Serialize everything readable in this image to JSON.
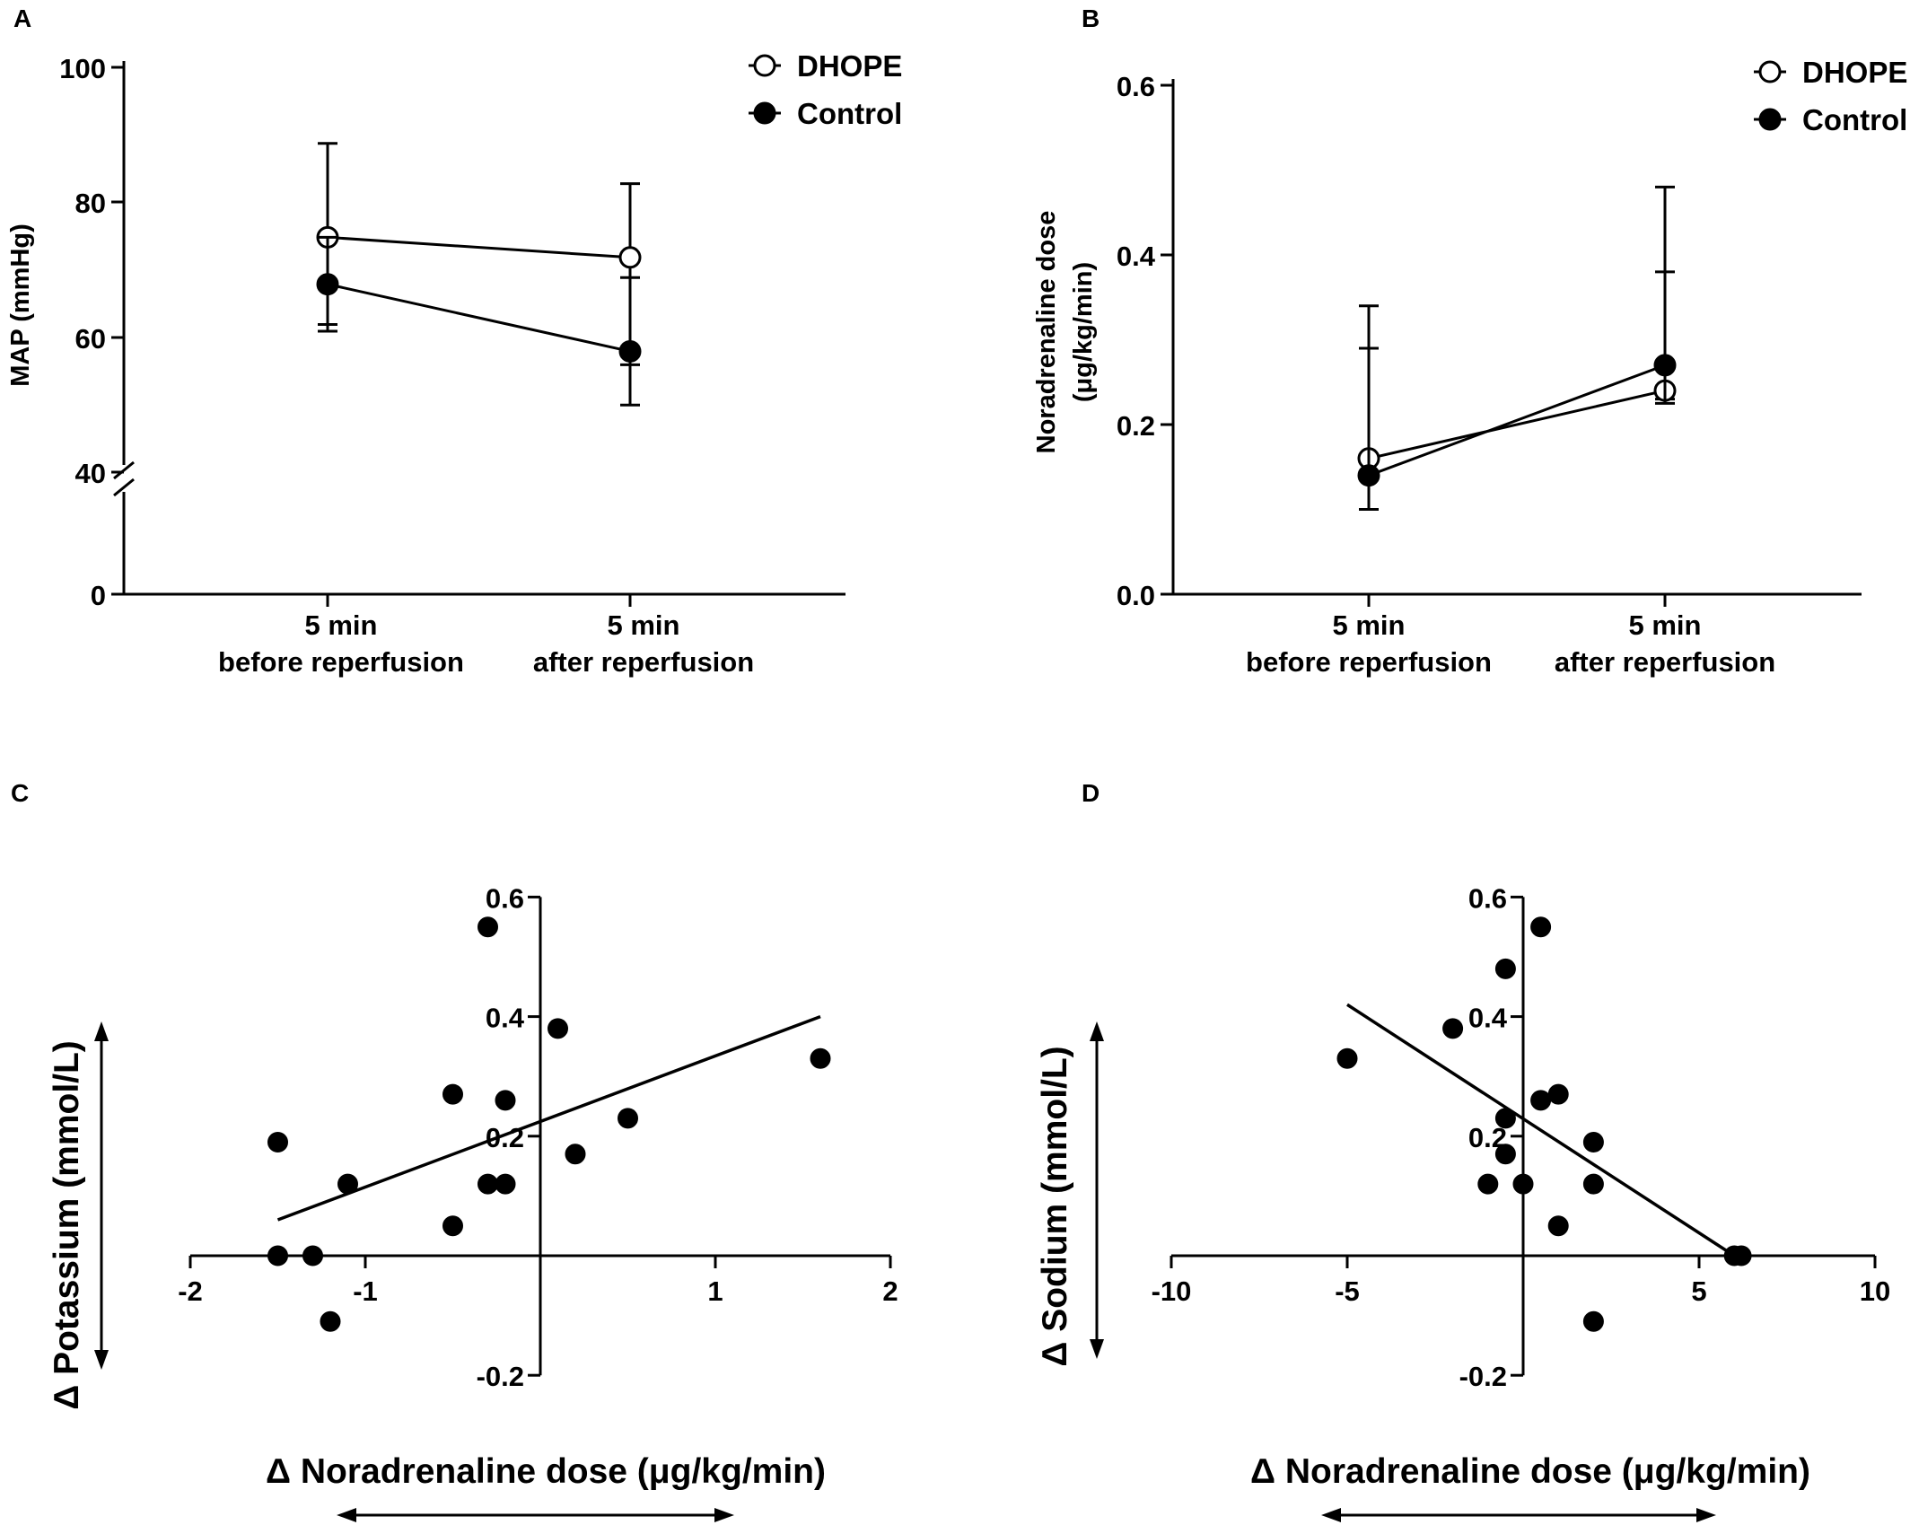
{
  "chart_data": [
    {
      "panel": "A",
      "type": "line",
      "ylabel": "MAP (mmHg)",
      "categories": [
        [
          "5 min",
          "before reperfusion"
        ],
        [
          "5 min",
          "after reperfusion"
        ]
      ],
      "yticks": [
        "100",
        "80",
        "60",
        "40",
        "0"
      ],
      "axis_break": true,
      "series": [
        {
          "name": "DHOPE",
          "marker": "open",
          "values": [
            75,
            72
          ],
          "err_low": [
            62,
            56
          ],
          "err_high": [
            89,
            83
          ]
        },
        {
          "name": "Control",
          "marker": "filled",
          "values": [
            68,
            58
          ],
          "err_low": [
            61,
            50
          ],
          "err_high": [
            75,
            69
          ]
        }
      ],
      "legend": "top-right"
    },
    {
      "panel": "B",
      "type": "line",
      "ylabel": [
        "Noradrenaline dose",
        "(μg/kg/min)"
      ],
      "categories": [
        [
          "5 min",
          "before reperfusion"
        ],
        [
          "5 min",
          "after reperfusion"
        ]
      ],
      "ylim": [
        0,
        0.6
      ],
      "yticks": [
        "0.0",
        "0.2",
        "0.4",
        "0.6"
      ],
      "series": [
        {
          "name": "DHOPE",
          "marker": "open",
          "values": [
            0.16,
            0.24
          ],
          "err_low": [
            0.1,
            0.23
          ],
          "err_high": [
            0.34,
            0.38
          ]
        },
        {
          "name": "Control",
          "marker": "filled",
          "values": [
            0.14,
            0.27
          ],
          "err_low": [
            0.1,
            0.225
          ],
          "err_high": [
            0.29,
            0.48
          ]
        }
      ],
      "legend": "top-right"
    },
    {
      "panel": "C",
      "type": "scatter",
      "xlabel": "Δ Noradrenaline dose (μg/kg/min)",
      "ylabel": "Δ Potassium (mmol/L)",
      "xlim": [
        -2,
        2
      ],
      "ylim": [
        -0.2,
        0.6
      ],
      "xticks": [
        "-2",
        "-1",
        "1",
        "2"
      ],
      "yticks": [
        "0.6",
        "0.4",
        "0.2",
        "-0.2"
      ],
      "points": [
        [
          -0.3,
          0.55
        ],
        [
          0.1,
          0.38
        ],
        [
          1.6,
          0.33
        ],
        [
          -0.5,
          0.27
        ],
        [
          -0.2,
          0.26
        ],
        [
          0.5,
          0.23
        ],
        [
          -1.5,
          0.19
        ],
        [
          0.2,
          0.17
        ],
        [
          -1.1,
          0.12
        ],
        [
          -0.3,
          0.12
        ],
        [
          -0.2,
          0.12
        ],
        [
          -0.5,
          0.05
        ],
        [
          -1.5,
          0.0
        ],
        [
          -1.3,
          0.0
        ],
        [
          -1.2,
          -0.11
        ]
      ],
      "fit_line": {
        "x": [
          -1.5,
          1.6
        ],
        "y": [
          0.06,
          0.4
        ]
      }
    },
    {
      "panel": "D",
      "type": "scatter",
      "xlabel": "Δ Noradrenaline dose (μg/kg/min)",
      "ylabel": "Δ Sodium (mmol/L)",
      "xlim": [
        -10,
        10
      ],
      "ylim": [
        -0.2,
        0.6
      ],
      "xticks": [
        "-10",
        "-5",
        "5",
        "10"
      ],
      "yticks": [
        "0.6",
        "0.4",
        "0.2",
        "-0.2"
      ],
      "points": [
        [
          0.5,
          0.55
        ],
        [
          -0.5,
          0.48
        ],
        [
          -2,
          0.38
        ],
        [
          -5,
          0.33
        ],
        [
          1,
          0.27
        ],
        [
          0.5,
          0.26
        ],
        [
          -0.5,
          0.23
        ],
        [
          2,
          0.19
        ],
        [
          -0.5,
          0.17
        ],
        [
          -1,
          0.12
        ],
        [
          0,
          0.12
        ],
        [
          2,
          0.12
        ],
        [
          1,
          0.05
        ],
        [
          6,
          0.0
        ],
        [
          6.2,
          0.0
        ],
        [
          2,
          -0.11
        ]
      ],
      "fit_line": {
        "x": [
          -5,
          6
        ],
        "y": [
          0.42,
          0.0
        ]
      }
    }
  ]
}
